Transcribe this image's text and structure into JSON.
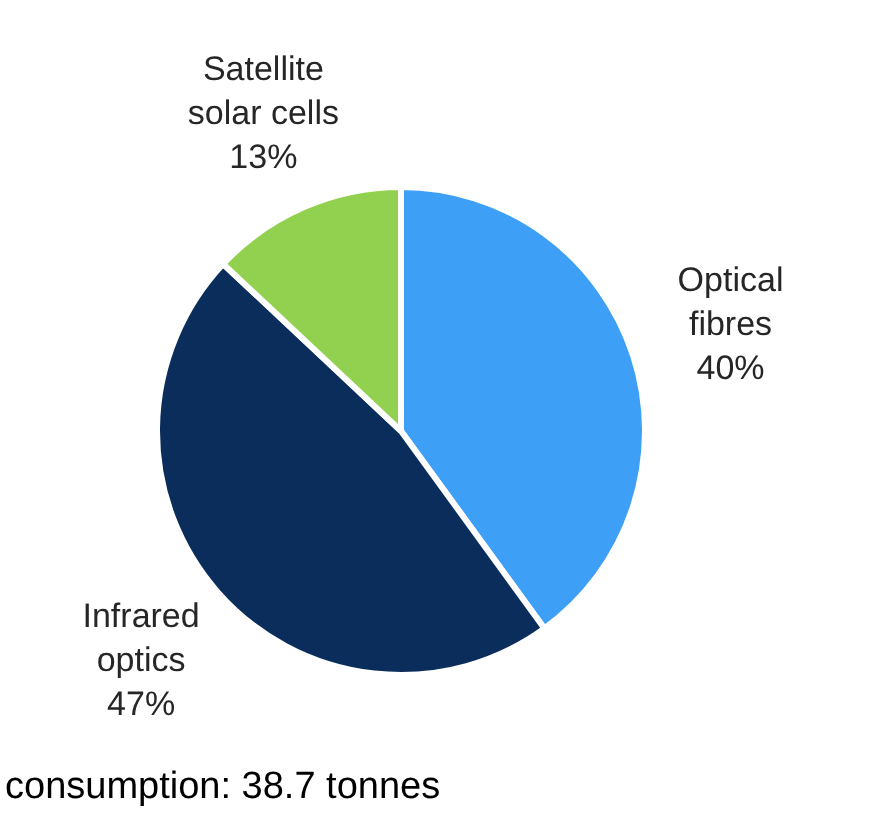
{
  "chart_data": {
    "type": "pie",
    "categories": [
      "Optical fibres",
      "Infrared optics",
      "Satellite solar cells"
    ],
    "values": [
      40,
      47,
      13
    ],
    "colors": [
      "#3d9ff5",
      "#0b2d5b",
      "#92d050"
    ],
    "value_labels": [
      "40%",
      "47%",
      "13%"
    ],
    "annotations": [
      "consumption: 38.7 tonnes"
    ]
  }
}
